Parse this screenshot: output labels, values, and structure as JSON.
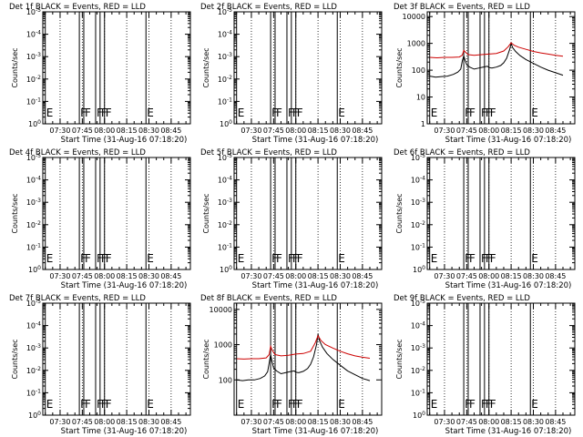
{
  "chart_data": [
    {
      "type": "line",
      "detector": "Det 1f",
      "title": "Det 1f BLACK = Events, RED = LLD",
      "xlabel": "Start Time (31-Aug-16 07:18:20)",
      "ylabel": "Counts/sec",
      "x_ticks": [
        "07:30",
        "07:45",
        "08:00",
        "08:15",
        "08:30",
        "08:45"
      ],
      "y_ticks": [
        "10^0",
        "10^-1",
        "10^-2",
        "10^-3",
        "10^-4",
        "10^-5"
      ],
      "ylim": [
        1,
        1e-05
      ],
      "y_scale": "log",
      "has_data": false,
      "series": [],
      "markers": [
        {
          "label": "E",
          "time": "07:20"
        },
        {
          "label": "F",
          "time": "07:43"
        },
        {
          "label": "F",
          "time": "07:46"
        },
        {
          "label": "F",
          "time": "07:54"
        },
        {
          "label": "F",
          "time": "07:57"
        },
        {
          "label": "F",
          "time": "08:00"
        },
        {
          "label": "E",
          "time": "08:28"
        }
      ]
    },
    {
      "type": "line",
      "detector": "Det 2f",
      "title": "Det 2f BLACK = Events, RED = LLD",
      "xlabel": "Start Time (31-Aug-16 07:18:20)",
      "ylabel": "Counts/sec",
      "x_ticks": [
        "07:30",
        "07:45",
        "08:00",
        "08:15",
        "08:30",
        "08:45"
      ],
      "y_ticks": [
        "10^0",
        "10^-1",
        "10^-2",
        "10^-3",
        "10^-4",
        "10^-5"
      ],
      "ylim": [
        1,
        1e-05
      ],
      "y_scale": "log",
      "has_data": false,
      "series": [],
      "markers": [
        {
          "label": "E",
          "time": "07:20"
        },
        {
          "label": "F",
          "time": "07:43"
        },
        {
          "label": "F",
          "time": "07:46"
        },
        {
          "label": "F",
          "time": "07:54"
        },
        {
          "label": "F",
          "time": "07:57"
        },
        {
          "label": "F",
          "time": "08:00"
        },
        {
          "label": "E",
          "time": "08:28"
        }
      ]
    },
    {
      "type": "line",
      "detector": "Det 3f",
      "title": "Det 3f BLACK = Events, RED = LLD",
      "xlabel": "Start Time (31-Aug-16 07:18:20)",
      "ylabel": "Counts/sec",
      "x_ticks": [
        "07:30",
        "07:45",
        "08:00",
        "08:15",
        "08:30",
        "08:45"
      ],
      "y_ticks": [
        "1",
        "10",
        "100",
        "1000",
        "10000"
      ],
      "ylim": [
        1,
        15000
      ],
      "y_scale": "log",
      "has_data": true,
      "series": [
        {
          "color": "#000000",
          "x": [
            "07:20",
            "07:24",
            "07:28",
            "07:32",
            "07:36",
            "07:39",
            "07:41",
            "07:42",
            "07:43",
            "07:44",
            "07:45",
            "07:47",
            "07:50",
            "07:53",
            "07:56",
            "07:59",
            "08:00",
            "08:02",
            "08:05",
            "08:08",
            "08:10",
            "08:12",
            "08:14",
            "08:15",
            "08:16",
            "08:18",
            "08:21",
            "08:25",
            "08:30",
            "08:35",
            "08:40",
            "08:45",
            "08:50"
          ],
          "y": [
            60,
            55,
            58,
            60,
            70,
            85,
            110,
            220,
            340,
            230,
            160,
            130,
            110,
            120,
            130,
            140,
            125,
            120,
            130,
            150,
            190,
            280,
            600,
            1000,
            700,
            500,
            350,
            250,
            180,
            130,
            100,
            80,
            65
          ]
        },
        {
          "color": "#cc0000",
          "x": [
            "07:20",
            "07:25",
            "07:30",
            "07:35",
            "07:40",
            "07:42",
            "07:43",
            "07:44",
            "07:46",
            "07:50",
            "07:55",
            "08:00",
            "08:05",
            "08:10",
            "08:13",
            "08:15",
            "08:17",
            "08:20",
            "08:25",
            "08:30",
            "08:35",
            "08:40",
            "08:45",
            "08:50"
          ],
          "y": [
            300,
            290,
            300,
            300,
            310,
            360,
            550,
            480,
            380,
            360,
            380,
            400,
            420,
            520,
            750,
            1050,
            850,
            720,
            600,
            500,
            440,
            400,
            360,
            330
          ]
        }
      ],
      "markers": [
        {
          "label": "E",
          "time": "07:20"
        },
        {
          "label": "F",
          "time": "07:43"
        },
        {
          "label": "F",
          "time": "07:46"
        },
        {
          "label": "F",
          "time": "07:54"
        },
        {
          "label": "F",
          "time": "07:57"
        },
        {
          "label": "F",
          "time": "08:00"
        },
        {
          "label": "E",
          "time": "08:28"
        }
      ]
    },
    {
      "type": "line",
      "detector": "Det 4f",
      "title": "Det 4f BLACK = Events, RED = LLD",
      "xlabel": "Start Time (31-Aug-16 07:18:20)",
      "ylabel": "Counts/sec",
      "x_ticks": [
        "07:30",
        "07:45",
        "08:00",
        "08:15",
        "08:30",
        "08:45"
      ],
      "y_ticks": [
        "10^0",
        "10^-1",
        "10^-2",
        "10^-3",
        "10^-4",
        "10^-5"
      ],
      "ylim": [
        1,
        1e-05
      ],
      "y_scale": "log",
      "has_data": false,
      "series": [],
      "markers": [
        {
          "label": "E",
          "time": "07:20"
        },
        {
          "label": "F",
          "time": "07:43"
        },
        {
          "label": "F",
          "time": "07:46"
        },
        {
          "label": "F",
          "time": "07:54"
        },
        {
          "label": "F",
          "time": "07:57"
        },
        {
          "label": "F",
          "time": "08:00"
        },
        {
          "label": "E",
          "time": "08:28"
        }
      ]
    },
    {
      "type": "line",
      "detector": "Det 5f",
      "title": "Det 5f BLACK = Events, RED = LLD",
      "xlabel": "Start Time (31-Aug-16 07:18:20)",
      "ylabel": "Counts/sec",
      "x_ticks": [
        "07:30",
        "07:45",
        "08:00",
        "08:15",
        "08:30",
        "08:45"
      ],
      "y_ticks": [
        "10^0",
        "10^-1",
        "10^-2",
        "10^-3",
        "10^-4",
        "10^-5"
      ],
      "ylim": [
        1,
        1e-05
      ],
      "y_scale": "log",
      "has_data": false,
      "series": [],
      "markers": [
        {
          "label": "E",
          "time": "07:20"
        },
        {
          "label": "F",
          "time": "07:43"
        },
        {
          "label": "F",
          "time": "07:46"
        },
        {
          "label": "F",
          "time": "07:54"
        },
        {
          "label": "F",
          "time": "07:57"
        },
        {
          "label": "F",
          "time": "08:00"
        },
        {
          "label": "E",
          "time": "08:28"
        }
      ]
    },
    {
      "type": "line",
      "detector": "Det 6f",
      "title": "Det 6f BLACK = Events, RED = LLD",
      "xlabel": "Start Time (31-Aug-16 07:18:20)",
      "ylabel": "Counts/sec",
      "x_ticks": [
        "07:30",
        "07:45",
        "08:00",
        "08:15",
        "08:30",
        "08:45"
      ],
      "y_ticks": [
        "10^0",
        "10^-1",
        "10^-2",
        "10^-3",
        "10^-4",
        "10^-5"
      ],
      "ylim": [
        1,
        1e-05
      ],
      "y_scale": "log",
      "has_data": false,
      "series": [],
      "markers": [
        {
          "label": "E",
          "time": "07:20"
        },
        {
          "label": "F",
          "time": "07:43"
        },
        {
          "label": "F",
          "time": "07:46"
        },
        {
          "label": "F",
          "time": "07:54"
        },
        {
          "label": "F",
          "time": "07:57"
        },
        {
          "label": "F",
          "time": "08:00"
        },
        {
          "label": "E",
          "time": "08:28"
        }
      ]
    },
    {
      "type": "line",
      "detector": "Det 7f",
      "title": "Det 7f BLACK = Events, RED = LLD",
      "xlabel": "Start Time (31-Aug-16 07:18:20)",
      "ylabel": "Counts/sec",
      "x_ticks": [
        "07:30",
        "07:45",
        "08:00",
        "08:15",
        "08:30",
        "08:45"
      ],
      "y_ticks": [
        "10^0",
        "10^-1",
        "10^-2",
        "10^-3",
        "10^-4",
        "10^-5"
      ],
      "ylim": [
        1,
        1e-05
      ],
      "y_scale": "log",
      "has_data": false,
      "series": [],
      "markers": [
        {
          "label": "E",
          "time": "07:20"
        },
        {
          "label": "F",
          "time": "07:43"
        },
        {
          "label": "F",
          "time": "07:46"
        },
        {
          "label": "F",
          "time": "07:54"
        },
        {
          "label": "F",
          "time": "07:57"
        },
        {
          "label": "F",
          "time": "08:00"
        },
        {
          "label": "E",
          "time": "08:28"
        }
      ]
    },
    {
      "type": "line",
      "detector": "Det 8f",
      "title": "Det 8f BLACK = Events, RED = LLD",
      "xlabel": "Start Time (31-Aug-16 07:18:20)",
      "ylabel": "Counts/sec",
      "x_ticks": [
        "07:30",
        "07:45",
        "08:00",
        "08:15",
        "08:30",
        "08:45"
      ],
      "y_ticks": [
        "100",
        "1000",
        "10000"
      ],
      "ylim": [
        10,
        15000
      ],
      "y_scale": "log",
      "has_data": true,
      "series": [
        {
          "color": "#000000",
          "x": [
            "07:20",
            "07:24",
            "07:28",
            "07:32",
            "07:36",
            "07:39",
            "07:41",
            "07:42",
            "07:43",
            "07:44",
            "07:45",
            "07:47",
            "07:50",
            "07:53",
            "07:56",
            "07:59",
            "08:00",
            "08:02",
            "08:05",
            "08:08",
            "08:10",
            "08:12",
            "08:14",
            "08:15",
            "08:16",
            "08:18",
            "08:21",
            "08:25",
            "08:30",
            "08:35",
            "08:40",
            "08:45",
            "08:50"
          ],
          "y": [
            100,
            95,
            100,
            100,
            110,
            130,
            170,
            300,
            520,
            330,
            220,
            180,
            150,
            160,
            170,
            180,
            165,
            160,
            175,
            210,
            280,
            450,
            1000,
            2000,
            1300,
            850,
            560,
            380,
            260,
            180,
            140,
            110,
            95
          ]
        },
        {
          "color": "#cc0000",
          "x": [
            "07:20",
            "07:25",
            "07:30",
            "07:35",
            "07:40",
            "07:42",
            "07:43",
            "07:44",
            "07:46",
            "07:50",
            "07:55",
            "08:00",
            "08:05",
            "08:10",
            "08:13",
            "08:15",
            "08:17",
            "08:20",
            "08:25",
            "08:30",
            "08:35",
            "08:40",
            "08:45",
            "08:50"
          ],
          "y": [
            400,
            390,
            400,
            400,
            420,
            520,
            900,
            700,
            520,
            480,
            500,
            540,
            560,
            650,
            1100,
            1800,
            1300,
            1000,
            800,
            650,
            550,
            480,
            440,
            410
          ]
        }
      ],
      "markers": [
        {
          "label": "E",
          "time": "07:20"
        },
        {
          "label": "F",
          "time": "07:43"
        },
        {
          "label": "F",
          "time": "07:46"
        },
        {
          "label": "F",
          "time": "07:54"
        },
        {
          "label": "F",
          "time": "07:57"
        },
        {
          "label": "F",
          "time": "08:00"
        },
        {
          "label": "E",
          "time": "08:28"
        }
      ]
    },
    {
      "type": "line",
      "detector": "Det 9f",
      "title": "Det 9f BLACK = Events, RED = LLD",
      "xlabel": "Start Time (31-Aug-16 07:18:20)",
      "ylabel": "Counts/sec",
      "x_ticks": [
        "07:30",
        "07:45",
        "08:00",
        "08:15",
        "08:30",
        "08:45"
      ],
      "y_ticks": [
        "10^0",
        "10^-1",
        "10^-2",
        "10^-3",
        "10^-4",
        "10^-5"
      ],
      "ylim": [
        1,
        1e-05
      ],
      "y_scale": "log",
      "has_data": false,
      "series": [],
      "markers": [
        {
          "label": "E",
          "time": "07:20"
        },
        {
          "label": "F",
          "time": "07:43"
        },
        {
          "label": "F",
          "time": "07:46"
        },
        {
          "label": "F",
          "time": "07:54"
        },
        {
          "label": "F",
          "time": "07:57"
        },
        {
          "label": "F",
          "time": "08:00"
        },
        {
          "label": "E",
          "time": "08:28"
        }
      ]
    }
  ],
  "colors": {
    "events": "#000000",
    "lld": "#cc0000",
    "axes": "#000000",
    "background": "#ffffff"
  }
}
